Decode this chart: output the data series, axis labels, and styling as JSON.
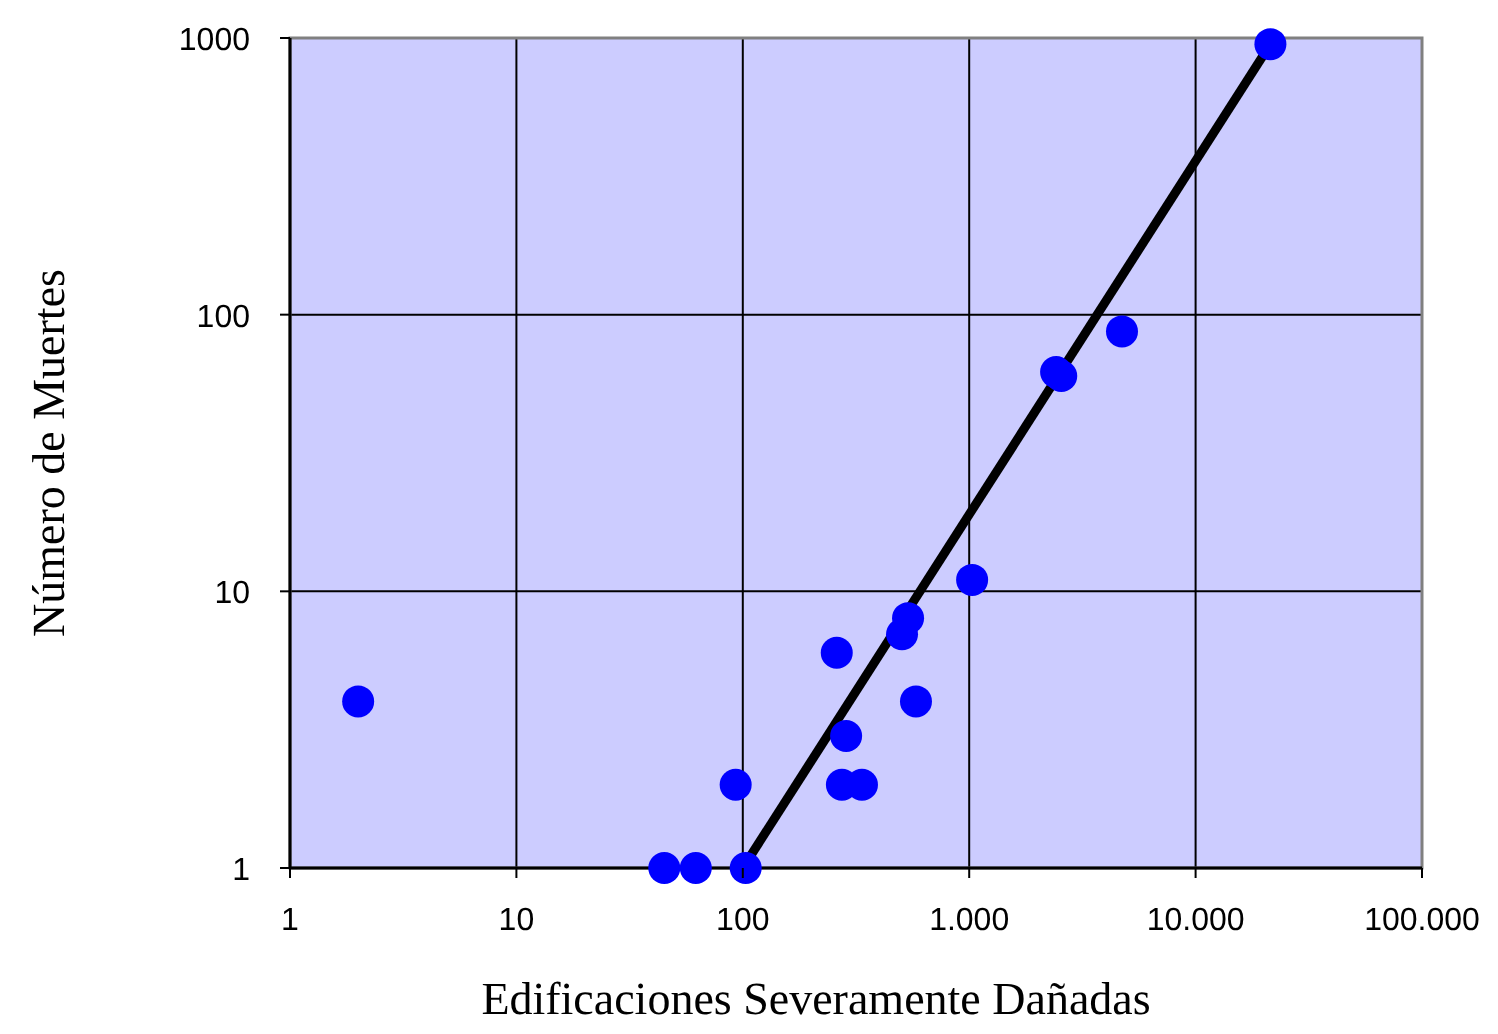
{
  "chart_data": {
    "type": "scatter",
    "xlabel": "Edificaciones Severamente Dañadas",
    "ylabel": "Número de Muertes",
    "log": "xy",
    "grid": true,
    "xlim": [
      1,
      100000
    ],
    "ylim": [
      1,
      1000
    ],
    "xticks": [
      1,
      10,
      100,
      {
        "value": 1000,
        "label": "1.000"
      },
      {
        "value": 10000,
        "label": "10.000"
      },
      {
        "value": 100000,
        "label": "100.000"
      }
    ],
    "yticks": [
      1,
      10,
      100,
      1000
    ],
    "series": [
      {
        "color": "#0000ff",
        "marker": "circle",
        "x": [
          2,
          45,
          62,
          103,
          93,
          260,
          286,
          274,
          336,
          505,
          537,
          582,
          1030,
          2420,
          2550,
          4730,
          21400
        ],
        "values": [
          4,
          1,
          1,
          1,
          2,
          6,
          3,
          2,
          2,
          7,
          8,
          4,
          11,
          62,
          60,
          87,
          950
        ]
      },
      {
        "type": "line",
        "color": "#000000",
        "marker": "none",
        "x": [
          100,
          21400
        ],
        "values": [
          1,
          950
        ]
      }
    ]
  }
}
